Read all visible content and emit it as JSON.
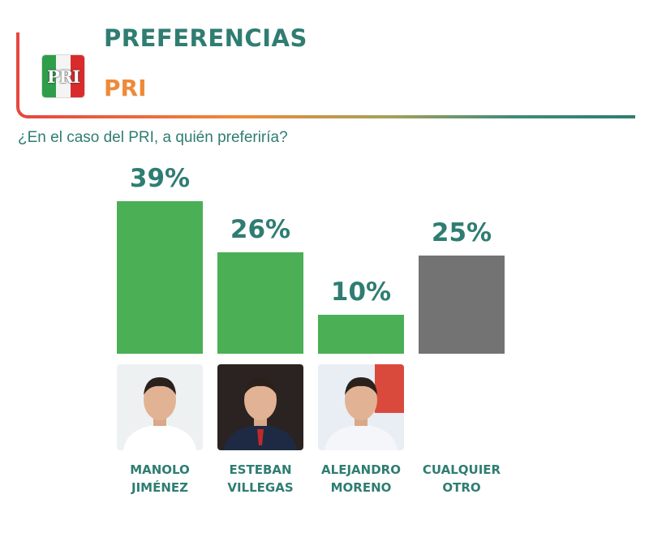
{
  "header": {
    "title": "PREFERENCIAS",
    "subtitle": "PRI",
    "logo_text": "PRI"
  },
  "colors": {
    "teal": "#2f7d72",
    "orange": "#ee8a3a",
    "red": "#e8473f",
    "bar_green": "#4aaf55",
    "bar_gray": "#737373"
  },
  "chart_data": {
    "type": "bar",
    "title": "¿En el caso del PRI, a quién preferiría?",
    "categories": [
      "MANOLO JIMÉNEZ",
      "ESTEBAN VILLEGAS",
      "ALEJANDRO MORENO",
      "CUALQUIER OTRO"
    ],
    "category_lines": [
      [
        "MANOLO",
        "JIMÉNEZ"
      ],
      [
        "ESTEBAN",
        "VILLEGAS"
      ],
      [
        "ALEJANDRO",
        "MORENO"
      ],
      [
        "CUALQUIER",
        "OTRO"
      ]
    ],
    "values": [
      39,
      26,
      10,
      25
    ],
    "value_labels": [
      "39%",
      "26%",
      "10%",
      "25%"
    ],
    "bar_colors": [
      "#4aaf55",
      "#4aaf55",
      "#4aaf55",
      "#737373"
    ],
    "has_photo": [
      true,
      true,
      true,
      false
    ],
    "ylim": [
      0,
      39
    ],
    "grid": false,
    "legend": "none"
  }
}
